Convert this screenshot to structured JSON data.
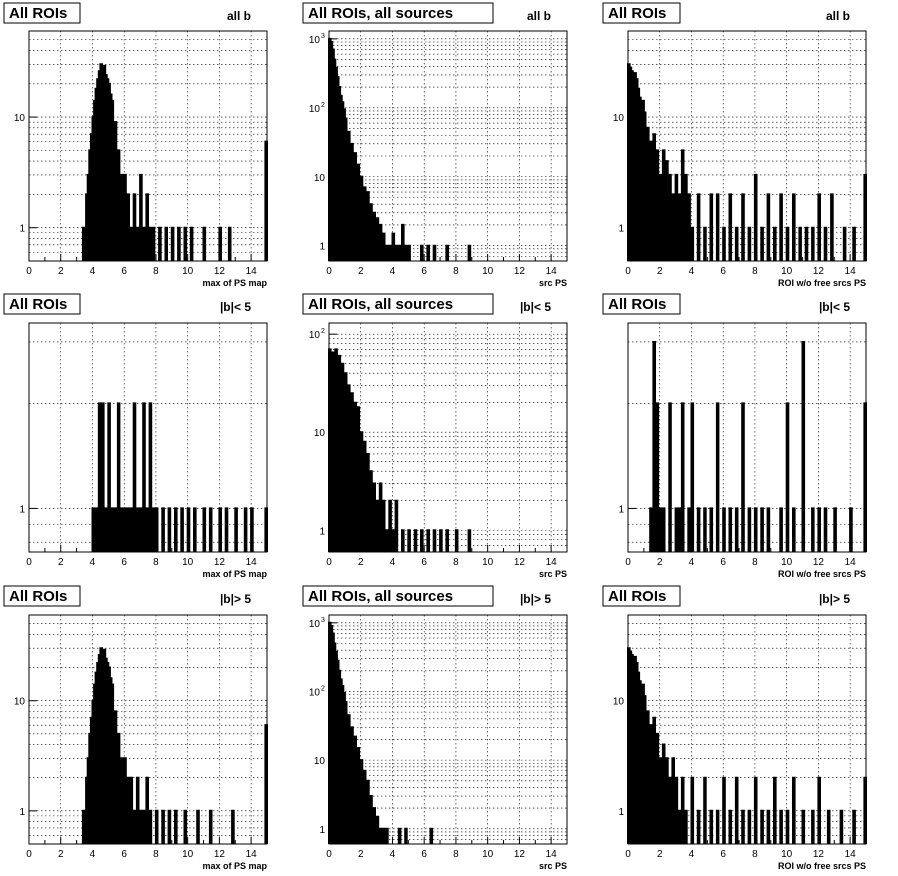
{
  "chart_data": [
    {
      "type": "histogram",
      "title": "All ROIs",
      "subtitle": "all b",
      "xlabel": "max of PS map",
      "xlim": [
        0,
        15
      ],
      "ylim": [
        0.5,
        60
      ],
      "yscale": "log",
      "xticks": [
        "0",
        "2",
        "4",
        "6",
        "8",
        "10",
        "12",
        "14"
      ],
      "yticks": [
        {
          "value": 1,
          "label": "1"
        },
        {
          "value": 10,
          "label": "10"
        }
      ],
      "x": [
        3.4,
        3.6,
        3.7,
        3.8,
        3.9,
        4.0,
        4.1,
        4.2,
        4.3,
        4.4,
        4.5,
        4.6,
        4.7,
        4.8,
        4.9,
        5.0,
        5.1,
        5.2,
        5.4,
        5.6,
        5.8,
        6.0,
        6.2,
        6.4,
        6.6,
        6.8,
        7.0,
        7.2,
        7.4,
        7.6,
        7.8,
        8.2,
        8.6,
        9.0,
        9.4,
        9.8,
        10.2,
        11.0,
        12.0,
        12.6,
        14.9
      ],
      "values": [
        1,
        2,
        3,
        5,
        7,
        10,
        14,
        18,
        22,
        26,
        30,
        28,
        29,
        24,
        22,
        20,
        16,
        14,
        9,
        5,
        3,
        3,
        2,
        1,
        2,
        1,
        3,
        1,
        2,
        1,
        1,
        1,
        1,
        1,
        1,
        1,
        1,
        1,
        1,
        1,
        6
      ]
    },
    {
      "type": "histogram",
      "title": "All ROIs, all sources",
      "subtitle": "all b",
      "xlabel": "src PS",
      "xlim": [
        0,
        15
      ],
      "ylim": [
        0.6,
        1300
      ],
      "yscale": "log",
      "xticks": [
        "0",
        "2",
        "4",
        "6",
        "8",
        "10",
        "12",
        "14"
      ],
      "yticks": [
        {
          "value": 1,
          "label": "1"
        },
        {
          "value": 10,
          "label": "10"
        },
        {
          "value": 100,
          "label": "10",
          "sup": "2"
        },
        {
          "value": 1000,
          "label": "10",
          "sup": "3"
        }
      ],
      "x": [
        0.0,
        0.1,
        0.2,
        0.3,
        0.4,
        0.5,
        0.6,
        0.7,
        0.8,
        0.9,
        1.0,
        1.2,
        1.4,
        1.6,
        1.8,
        2.0,
        2.2,
        2.4,
        2.6,
        2.8,
        3.0,
        3.2,
        3.4,
        3.6,
        3.8,
        4.0,
        4.2,
        4.4,
        4.6,
        4.8,
        5.0,
        5.4,
        5.8,
        6.2,
        6.6,
        7.0,
        7.4,
        8.0,
        8.8
      ],
      "values": [
        1000,
        900,
        700,
        500,
        380,
        280,
        200,
        150,
        120,
        95,
        70,
        45,
        30,
        22,
        15,
        10,
        7,
        6,
        4,
        3,
        2.5,
        2,
        1.5,
        1,
        1,
        1.5,
        1,
        1,
        2,
        1,
        1,
        0,
        1,
        1,
        1,
        0,
        1,
        0,
        1
      ]
    },
    {
      "type": "histogram",
      "title": "All ROIs",
      "subtitle": "all b",
      "xlabel": "ROI w/o free srcs PS",
      "xlim": [
        0,
        15
      ],
      "ylim": [
        0.5,
        60
      ],
      "yscale": "log",
      "xticks": [
        "0",
        "2",
        "4",
        "6",
        "8",
        "10",
        "12",
        "14"
      ],
      "yticks": [
        {
          "value": 1,
          "label": "1"
        },
        {
          "value": 10,
          "label": "10"
        }
      ],
      "x": [
        0.0,
        0.1,
        0.2,
        0.3,
        0.4,
        0.5,
        0.6,
        0.7,
        0.8,
        0.9,
        1.0,
        1.2,
        1.4,
        1.6,
        1.8,
        2.0,
        2.2,
        2.4,
        2.6,
        2.8,
        3.0,
        3.2,
        3.4,
        3.6,
        3.8,
        4.0,
        4.4,
        4.8,
        5.2,
        5.6,
        6.0,
        6.4,
        6.8,
        7.2,
        7.6,
        8.0,
        8.4,
        8.8,
        9.2,
        9.6,
        10.0,
        10.4,
        10.8,
        11.2,
        11.6,
        12.0,
        12.4,
        12.8,
        13.6,
        14.2,
        14.9
      ],
      "values": [
        30,
        28,
        26,
        24,
        25,
        22,
        18,
        15,
        12,
        14,
        11,
        8,
        6,
        7,
        5,
        3,
        5,
        4,
        3,
        2,
        3,
        2,
        5,
        3,
        2,
        1,
        2,
        1,
        2,
        2,
        1,
        2,
        1,
        2,
        1,
        3,
        1,
        2,
        1,
        2,
        1,
        2,
        1,
        1,
        1,
        2,
        1,
        2,
        1,
        1,
        3
      ]
    },
    {
      "type": "histogram",
      "title": "All ROIs",
      "subtitle": "|b|< 5",
      "xlabel": "max of PS map",
      "xlim": [
        0,
        15
      ],
      "ylim": [
        0.75,
        3.4
      ],
      "yscale": "log",
      "xticks": [
        "0",
        "2",
        "4",
        "6",
        "8",
        "10",
        "12",
        "14"
      ],
      "yticks": [
        {
          "value": 1,
          "label": "1"
        }
      ],
      "x": [
        4.0,
        4.2,
        4.4,
        4.6,
        4.8,
        5.0,
        5.2,
        5.4,
        5.6,
        5.8,
        6.0,
        6.2,
        6.4,
        6.6,
        6.8,
        7.0,
        7.2,
        7.4,
        7.6,
        7.8,
        8.0,
        8.4,
        8.8,
        9.2,
        9.6,
        10.0,
        10.4,
        11.0,
        11.4,
        12.0,
        12.4,
        13.0,
        13.6,
        14.0,
        14.9
      ],
      "values": [
        1,
        1,
        2,
        2,
        1,
        2,
        1,
        1,
        2,
        1,
        1,
        1,
        1,
        2,
        1,
        1,
        2,
        1,
        2,
        1,
        1,
        1,
        1,
        1,
        1,
        1,
        1,
        1,
        1,
        1,
        1,
        1,
        1,
        1,
        1
      ]
    },
    {
      "type": "histogram",
      "title": "All ROIs, all sources",
      "subtitle": "|b|< 5",
      "xlabel": "src PS",
      "xlim": [
        0,
        15
      ],
      "ylim": [
        0.6,
        130
      ],
      "yscale": "log",
      "xticks": [
        "0",
        "2",
        "4",
        "6",
        "8",
        "10",
        "12",
        "14"
      ],
      "yticks": [
        {
          "value": 1,
          "label": "1"
        },
        {
          "value": 10,
          "label": "10"
        },
        {
          "value": 100,
          "label": "10",
          "sup": "2"
        }
      ],
      "x": [
        0.0,
        0.2,
        0.4,
        0.6,
        0.8,
        1.0,
        1.2,
        1.4,
        1.6,
        1.8,
        2.0,
        2.2,
        2.4,
        2.6,
        2.8,
        3.0,
        3.2,
        3.4,
        3.6,
        3.8,
        4.0,
        4.2,
        4.6,
        5.0,
        5.4,
        5.8,
        6.2,
        6.6,
        7.0,
        7.4,
        8.0,
        8.8
      ],
      "values": [
        70,
        65,
        70,
        60,
        50,
        40,
        30,
        25,
        20,
        18,
        10,
        8,
        6,
        4,
        3,
        2,
        3,
        2,
        1,
        2,
        1,
        2,
        1,
        1,
        1,
        1,
        1,
        1,
        1,
        1,
        1,
        1
      ]
    },
    {
      "type": "histogram",
      "title": "All ROIs",
      "subtitle": "|b|< 5",
      "xlabel": "ROI w/o free srcs PS",
      "xlim": [
        0,
        15
      ],
      "ylim": [
        0.75,
        3.4
      ],
      "yscale": "log",
      "xticks": [
        "0",
        "2",
        "4",
        "6",
        "8",
        "10",
        "12",
        "14"
      ],
      "yticks": [
        {
          "value": 1,
          "label": "1"
        }
      ],
      "x": [
        1.4,
        1.6,
        1.8,
        2.0,
        2.2,
        2.6,
        3.0,
        3.2,
        3.4,
        3.8,
        4.0,
        4.4,
        4.8,
        5.2,
        5.6,
        6.0,
        6.4,
        6.8,
        7.2,
        7.6,
        8.0,
        8.4,
        8.8,
        9.6,
        10.0,
        10.4,
        11.0,
        11.6,
        12.0,
        12.4,
        13.0,
        14.0,
        14.9
      ],
      "values": [
        1,
        3,
        2,
        1,
        1,
        2,
        1,
        1,
        2,
        1,
        2,
        1,
        1,
        1,
        2,
        1,
        1,
        1,
        2,
        1,
        1,
        1,
        1,
        1,
        2,
        1,
        3,
        1,
        1,
        1,
        1,
        1,
        2
      ]
    },
    {
      "type": "histogram",
      "title": "All ROIs",
      "subtitle": "|b|> 5",
      "xlabel": "max of PS map",
      "xlim": [
        0,
        15
      ],
      "ylim": [
        0.5,
        60
      ],
      "yscale": "log",
      "xticks": [
        "0",
        "2",
        "4",
        "6",
        "8",
        "10",
        "12",
        "14"
      ],
      "yticks": [
        {
          "value": 1,
          "label": "1"
        },
        {
          "value": 10,
          "label": "10"
        }
      ],
      "x": [
        3.4,
        3.6,
        3.7,
        3.8,
        3.9,
        4.0,
        4.1,
        4.2,
        4.3,
        4.4,
        4.5,
        4.6,
        4.7,
        4.8,
        4.9,
        5.0,
        5.1,
        5.2,
        5.4,
        5.6,
        5.8,
        6.0,
        6.2,
        6.4,
        6.6,
        6.8,
        7.0,
        7.2,
        7.4,
        7.6,
        8.0,
        8.4,
        8.8,
        9.2,
        9.8,
        10.6,
        11.4,
        12.8,
        14.9
      ],
      "values": [
        1,
        2,
        3,
        5,
        7,
        10,
        14,
        18,
        22,
        26,
        30,
        28,
        29,
        24,
        22,
        20,
        16,
        14,
        8,
        5,
        3,
        3,
        2,
        2,
        1,
        2,
        1,
        1,
        2,
        1,
        1,
        1,
        1,
        1,
        1,
        1,
        1,
        1,
        6
      ]
    },
    {
      "type": "histogram",
      "title": "All ROIs, all sources",
      "subtitle": "|b|> 5",
      "xlabel": "src PS",
      "xlim": [
        0,
        15
      ],
      "ylim": [
        0.6,
        1300
      ],
      "yscale": "log",
      "xticks": [
        "0",
        "2",
        "4",
        "6",
        "8",
        "10",
        "12",
        "14"
      ],
      "yticks": [
        {
          "value": 1,
          "label": "1"
        },
        {
          "value": 10,
          "label": "10"
        },
        {
          "value": 100,
          "label": "10",
          "sup": "2"
        },
        {
          "value": 1000,
          "label": "10",
          "sup": "3"
        }
      ],
      "x": [
        0.0,
        0.1,
        0.2,
        0.3,
        0.4,
        0.5,
        0.6,
        0.7,
        0.8,
        0.9,
        1.0,
        1.2,
        1.4,
        1.6,
        1.8,
        2.0,
        2.2,
        2.4,
        2.6,
        2.8,
        3.0,
        3.2,
        3.4,
        3.6,
        4.0,
        4.4,
        4.8,
        5.2,
        6.0,
        6.4
      ],
      "values": [
        1000,
        900,
        700,
        500,
        380,
        280,
        200,
        150,
        120,
        95,
        70,
        45,
        30,
        22,
        15,
        10,
        7,
        5,
        3,
        2,
        1.5,
        1,
        1,
        1,
        0,
        1,
        1,
        0,
        0,
        1
      ]
    },
    {
      "type": "histogram",
      "title": "All ROIs",
      "subtitle": "|b|> 5",
      "xlabel": "ROI w/o free srcs PS",
      "xlim": [
        0,
        15
      ],
      "ylim": [
        0.5,
        60
      ],
      "yscale": "log",
      "xticks": [
        "0",
        "2",
        "4",
        "6",
        "8",
        "10",
        "12",
        "14"
      ],
      "yticks": [
        {
          "value": 1,
          "label": "1"
        },
        {
          "value": 10,
          "label": "10"
        }
      ],
      "x": [
        0.0,
        0.1,
        0.2,
        0.3,
        0.4,
        0.5,
        0.6,
        0.7,
        0.8,
        0.9,
        1.0,
        1.2,
        1.4,
        1.6,
        1.8,
        2.0,
        2.2,
        2.4,
        2.6,
        2.8,
        3.0,
        3.2,
        3.4,
        3.6,
        4.0,
        4.4,
        4.8,
        5.2,
        5.6,
        6.0,
        6.4,
        6.8,
        7.2,
        7.6,
        8.0,
        8.4,
        8.8,
        9.2,
        9.6,
        10.0,
        10.4,
        11.0,
        11.6,
        12.0,
        12.6,
        13.4,
        14.2,
        14.9
      ],
      "values": [
        30,
        28,
        26,
        24,
        25,
        22,
        18,
        15,
        12,
        14,
        11,
        8,
        6,
        7,
        5,
        3,
        4,
        3,
        2,
        3,
        2,
        1,
        2,
        1,
        2,
        1,
        2,
        1,
        1,
        2,
        1,
        2,
        1,
        1,
        2,
        1,
        1,
        2,
        1,
        1,
        2,
        1,
        1,
        2,
        1,
        1,
        1,
        2
      ]
    }
  ]
}
